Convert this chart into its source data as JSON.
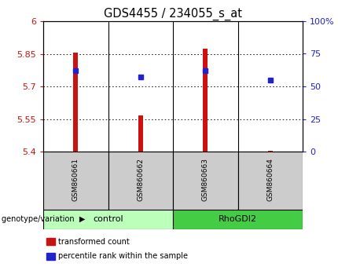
{
  "title": "GDS4455 / 234055_s_at",
  "samples": [
    "GSM860661",
    "GSM860662",
    "GSM860663",
    "GSM860664"
  ],
  "transformed_counts": [
    5.855,
    5.565,
    5.875,
    5.402
  ],
  "percentile_ranks": [
    62,
    57,
    62,
    55
  ],
  "y_min": 5.4,
  "y_max": 6.0,
  "y_ticks": [
    5.4,
    5.55,
    5.7,
    5.85,
    6.0
  ],
  "y_tick_labels": [
    "5.4",
    "5.55",
    "5.7",
    "5.85",
    "6"
  ],
  "y2_ticks": [
    0,
    25,
    50,
    75,
    100
  ],
  "y2_tick_labels": [
    "0",
    "25",
    "50",
    "75",
    "100%"
  ],
  "groups": [
    {
      "name": "control",
      "samples": [
        0,
        1
      ],
      "color": "#bbffbb"
    },
    {
      "name": "RhoGDI2",
      "samples": [
        2,
        3
      ],
      "color": "#44cc44"
    }
  ],
  "bar_color": "#cc1111",
  "marker_color": "#2222cc",
  "bar_width": 0.07,
  "legend_red": "transformed count",
  "legend_blue": "percentile rank within the sample",
  "xlabel": "genotype/variation",
  "sample_box_color": "#cccccc",
  "title_fontsize": 10.5,
  "tick_fontsize": 8
}
